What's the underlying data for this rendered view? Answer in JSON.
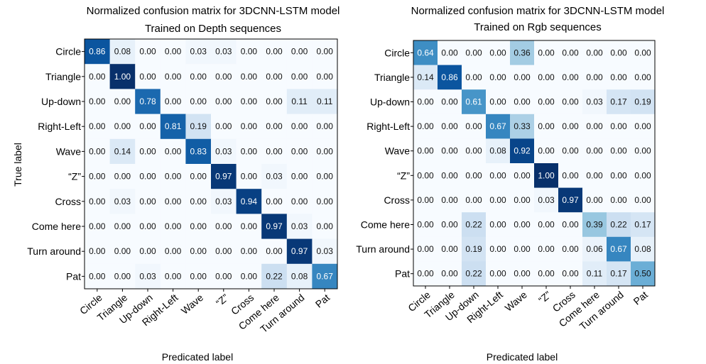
{
  "chart_data": [
    {
      "type": "heatmap",
      "title": "Normalized confusion matrix for 3DCNN-LSTM model",
      "subtitle": "Trained on Depth sequences",
      "ylabel": "True label",
      "xlabel": "Predicated label",
      "rows": [
        "Circle",
        "Triangle",
        "Up-down",
        "Right-Left",
        "Wave",
        "“Z”",
        "Cross",
        "Come here",
        "Turn around",
        "Pat"
      ],
      "cols": [
        "Circle",
        "Triangle",
        "Up-down",
        "Right-Left",
        "Wave",
        "“Z”",
        "Cross",
        "Come here",
        "Turn around",
        "Pat"
      ],
      "values": [
        [
          0.86,
          0.08,
          0.0,
          0.0,
          0.03,
          0.03,
          0.0,
          0.0,
          0.0,
          0.0
        ],
        [
          0.0,
          1.0,
          0.0,
          0.0,
          0.0,
          0.0,
          0.0,
          0.0,
          0.0,
          0.0
        ],
        [
          0.0,
          0.0,
          0.78,
          0.0,
          0.0,
          0.0,
          0.0,
          0.0,
          0.11,
          0.11
        ],
        [
          0.0,
          0.0,
          0.0,
          0.81,
          0.19,
          0.0,
          0.0,
          0.0,
          0.0,
          0.0
        ],
        [
          0.0,
          0.14,
          0.0,
          0.0,
          0.83,
          0.03,
          0.0,
          0.0,
          0.0,
          0.0
        ],
        [
          0.0,
          0.0,
          0.0,
          0.0,
          0.0,
          0.97,
          0.0,
          0.03,
          0.0,
          0.0
        ],
        [
          0.0,
          0.03,
          0.0,
          0.0,
          0.0,
          0.03,
          0.94,
          0.0,
          0.0,
          0.0
        ],
        [
          0.0,
          0.0,
          0.0,
          0.0,
          0.0,
          0.0,
          0.0,
          0.97,
          0.03,
          0.0
        ],
        [
          0.0,
          0.0,
          0.0,
          0.0,
          0.0,
          0.0,
          0.0,
          0.0,
          0.97,
          0.03
        ],
        [
          0.0,
          0.0,
          0.03,
          0.0,
          0.0,
          0.0,
          0.0,
          0.22,
          0.08,
          0.67
        ]
      ],
      "range": [
        0,
        1
      ],
      "colormap": [
        "#f7fbff",
        "#08306b"
      ]
    },
    {
      "type": "heatmap",
      "title": "Normalized confusion matrix for 3DCNN-LSTM model",
      "subtitle": "Trained on Rgb sequences",
      "ylabel": "",
      "xlabel": "Predicated label",
      "rows": [
        "Circle",
        "Triangle",
        "Up-down",
        "Right-Left",
        "Wave",
        "“Z”",
        "Cross",
        "Come here",
        "Turn around",
        "Pat"
      ],
      "cols": [
        "Circle",
        "Triangle",
        "Up-down",
        "Right-Left",
        "Wave",
        "“Z”",
        "Cross",
        "Come here",
        "Turn around",
        "Pat"
      ],
      "values": [
        [
          0.64,
          0.0,
          0.0,
          0.0,
          0.36,
          0.0,
          0.0,
          0.0,
          0.0,
          0.0
        ],
        [
          0.14,
          0.86,
          0.0,
          0.0,
          0.0,
          0.0,
          0.0,
          0.0,
          0.0,
          0.0
        ],
        [
          0.0,
          0.0,
          0.61,
          0.0,
          0.0,
          0.0,
          0.0,
          0.03,
          0.17,
          0.19
        ],
        [
          0.0,
          0.0,
          0.0,
          0.67,
          0.33,
          0.0,
          0.0,
          0.0,
          0.0,
          0.0
        ],
        [
          0.0,
          0.0,
          0.0,
          0.08,
          0.92,
          0.0,
          0.0,
          0.0,
          0.0,
          0.0
        ],
        [
          0.0,
          0.0,
          0.0,
          0.0,
          0.0,
          1.0,
          0.0,
          0.0,
          0.0,
          0.0
        ],
        [
          0.0,
          0.0,
          0.0,
          0.0,
          0.0,
          0.03,
          0.97,
          0.0,
          0.0,
          0.0
        ],
        [
          0.0,
          0.0,
          0.22,
          0.0,
          0.0,
          0.0,
          0.0,
          0.39,
          0.22,
          0.17
        ],
        [
          0.0,
          0.0,
          0.19,
          0.0,
          0.0,
          0.0,
          0.0,
          0.06,
          0.67,
          0.08
        ],
        [
          0.0,
          0.0,
          0.22,
          0.0,
          0.0,
          0.0,
          0.0,
          0.11,
          0.17,
          0.5
        ]
      ],
      "range": [
        0,
        1
      ],
      "colormap": [
        "#f7fbff",
        "#08306b"
      ]
    }
  ]
}
